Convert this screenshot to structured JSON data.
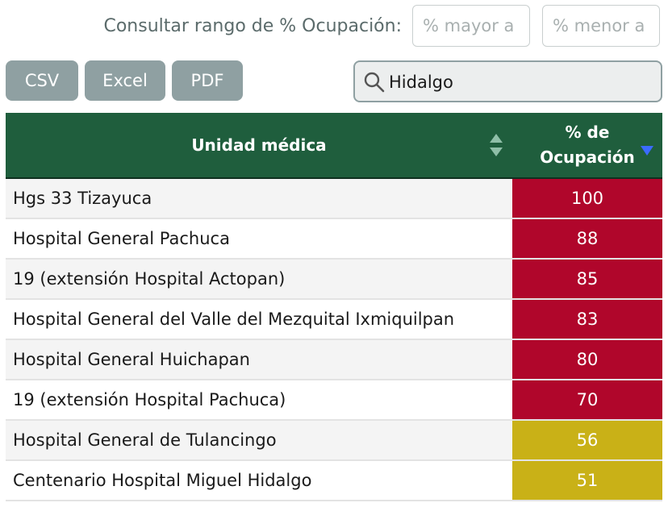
{
  "filter": {
    "label": "Consultar rango de % Ocupación:",
    "min_placeholder": "% mayor a",
    "max_placeholder": "% menor a"
  },
  "export": {
    "csv": "CSV",
    "excel": "Excel",
    "pdf": "PDF"
  },
  "search": {
    "value": "Hidalgo"
  },
  "table": {
    "col_unit": "Unidad médica",
    "col_occ_line1": "% de",
    "col_occ_line2": "Ocupación",
    "rows": [
      {
        "unit": "Hgs 33 Tizayuca",
        "occupancy": "100"
      },
      {
        "unit": "Hospital General Pachuca",
        "occupancy": "88"
      },
      {
        "unit": "19 (extensión Hospital Actopan)",
        "occupancy": "85"
      },
      {
        "unit": "Hospital General del Valle del Mezquital Ixmiquilpan",
        "occupancy": "83"
      },
      {
        "unit": "Hospital General Huichapan",
        "occupancy": "80"
      },
      {
        "unit": "19 (extensión Hospital Pachuca)",
        "occupancy": "70"
      },
      {
        "unit": "Hospital General de Tulancingo",
        "occupancy": "56"
      },
      {
        "unit": "Centenario Hospital Miguel Hidalgo",
        "occupancy": "51"
      }
    ]
  },
  "colors": {
    "header_bg": "#1f5e3d",
    "high_occupancy": "#b0062b",
    "mid_occupancy": "#c9b117",
    "export_button": "#8fa0a2",
    "sort_active": "#3b6bff"
  }
}
